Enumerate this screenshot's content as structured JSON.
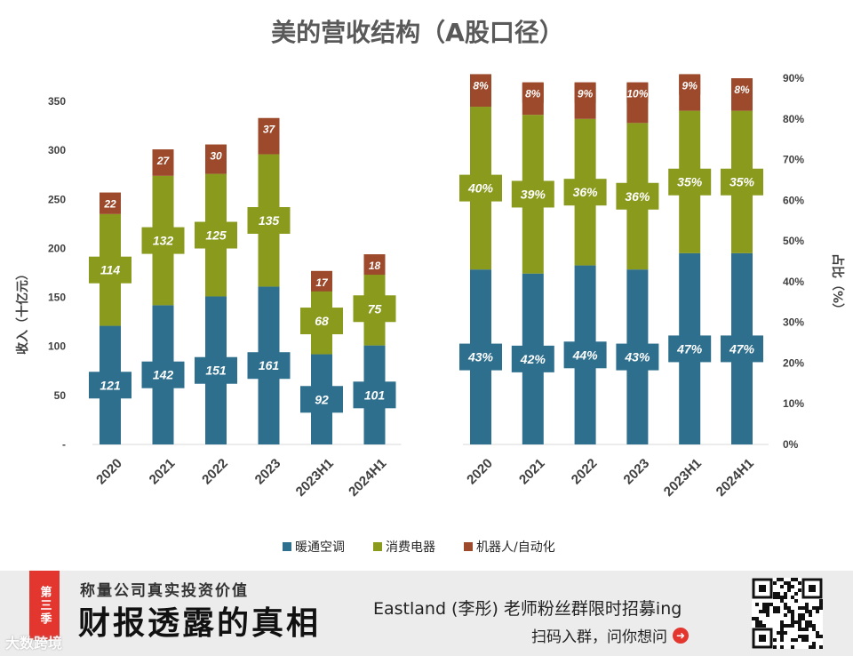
{
  "title": "美的营收结构（A股口径）",
  "colors": {
    "hvac": "#2e6f8e",
    "consumer": "#8a9a1d",
    "robot": "#9c4a2b"
  },
  "chart_data": [
    {
      "type": "bar",
      "stacked": true,
      "categories": [
        "2020",
        "2021",
        "2022",
        "2023",
        "2023H1",
        "2024H1"
      ],
      "ylabel": "收入（十亿元）",
      "ylim": [
        0,
        350
      ],
      "yticks": [
        "-",
        "50",
        "100",
        "150",
        "200",
        "250",
        "300",
        "350"
      ],
      "series": [
        {
          "name": "暖通空调",
          "values": [
            121,
            142,
            151,
            161,
            92,
            101
          ],
          "labels": [
            "121",
            "142",
            "151",
            "161",
            "92",
            "101"
          ]
        },
        {
          "name": "消费电器",
          "values": [
            114,
            132,
            125,
            135,
            68,
            75
          ],
          "labels": [
            "114",
            "132",
            "125",
            "135",
            "68",
            "75"
          ]
        },
        {
          "name": "机器人/自动化",
          "values": [
            22,
            27,
            30,
            37,
            17,
            18
          ],
          "labels": [
            "22",
            "27",
            "30",
            "37",
            "17",
            "18"
          ]
        }
      ]
    },
    {
      "type": "bar",
      "stacked": true,
      "categories": [
        "2020",
        "2021",
        "2022",
        "2023",
        "2023H1",
        "2024H1"
      ],
      "ylabel": "占比（%）",
      "ylim": [
        0,
        90
      ],
      "yticks": [
        "0%",
        "10%",
        "20%",
        "30%",
        "40%",
        "50%",
        "60%",
        "70%",
        "80%",
        "90%"
      ],
      "series": [
        {
          "name": "暖通空调",
          "values": [
            43,
            42,
            44,
            43,
            47,
            47
          ],
          "labels": [
            "43%",
            "42%",
            "44%",
            "43%",
            "47%",
            "47%"
          ]
        },
        {
          "name": "消费电器",
          "values": [
            40,
            39,
            36,
            36,
            35,
            35
          ],
          "labels": [
            "40%",
            "39%",
            "36%",
            "36%",
            "35%",
            "35%"
          ]
        },
        {
          "name": "机器人/自动化",
          "values": [
            8,
            8,
            9,
            10,
            9,
            8
          ],
          "labels": [
            "8%",
            "8%",
            "9%",
            "10%",
            "9%",
            "8%"
          ]
        }
      ]
    }
  ],
  "legend": [
    "暖通空调",
    "消费电器",
    "机器人/自动化"
  ],
  "banner": {
    "tag": "第三季",
    "slogan": "称量公司真实投资价值",
    "title": "财报透露的真相",
    "promo_line1": "Eastland (李彤) 老师粉丝群限时招募ing",
    "promo_line2": "扫码入群，问你想问",
    "watermark": "大数跨境"
  }
}
